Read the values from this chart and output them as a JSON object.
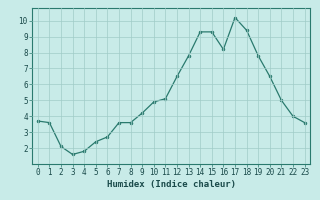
{
  "x": [
    0,
    1,
    2,
    3,
    4,
    5,
    6,
    7,
    8,
    9,
    10,
    11,
    12,
    13,
    14,
    15,
    16,
    17,
    18,
    19,
    20,
    21,
    22,
    23
  ],
  "y": [
    3.7,
    3.6,
    2.1,
    1.6,
    1.8,
    2.4,
    2.7,
    3.6,
    3.6,
    4.2,
    4.9,
    5.1,
    6.5,
    7.8,
    9.3,
    9.3,
    8.2,
    10.2,
    9.4,
    7.8,
    6.5,
    5.0,
    4.0,
    3.6
  ],
  "line_color": "#2a7a6e",
  "marker_color": "#2a7a6e",
  "bg_color": "#c8ebe8",
  "grid_color": "#a0ccc8",
  "xlabel": "Humidex (Indice chaleur)",
  "xlim": [
    -0.5,
    23.5
  ],
  "ylim": [
    1.0,
    10.8
  ],
  "yticks": [
    2,
    3,
    4,
    5,
    6,
    7,
    8,
    9,
    10
  ],
  "xticks": [
    0,
    1,
    2,
    3,
    4,
    5,
    6,
    7,
    8,
    9,
    10,
    11,
    12,
    13,
    14,
    15,
    16,
    17,
    18,
    19,
    20,
    21,
    22,
    23
  ],
  "tick_fontsize": 5.5,
  "label_fontsize": 6.5
}
